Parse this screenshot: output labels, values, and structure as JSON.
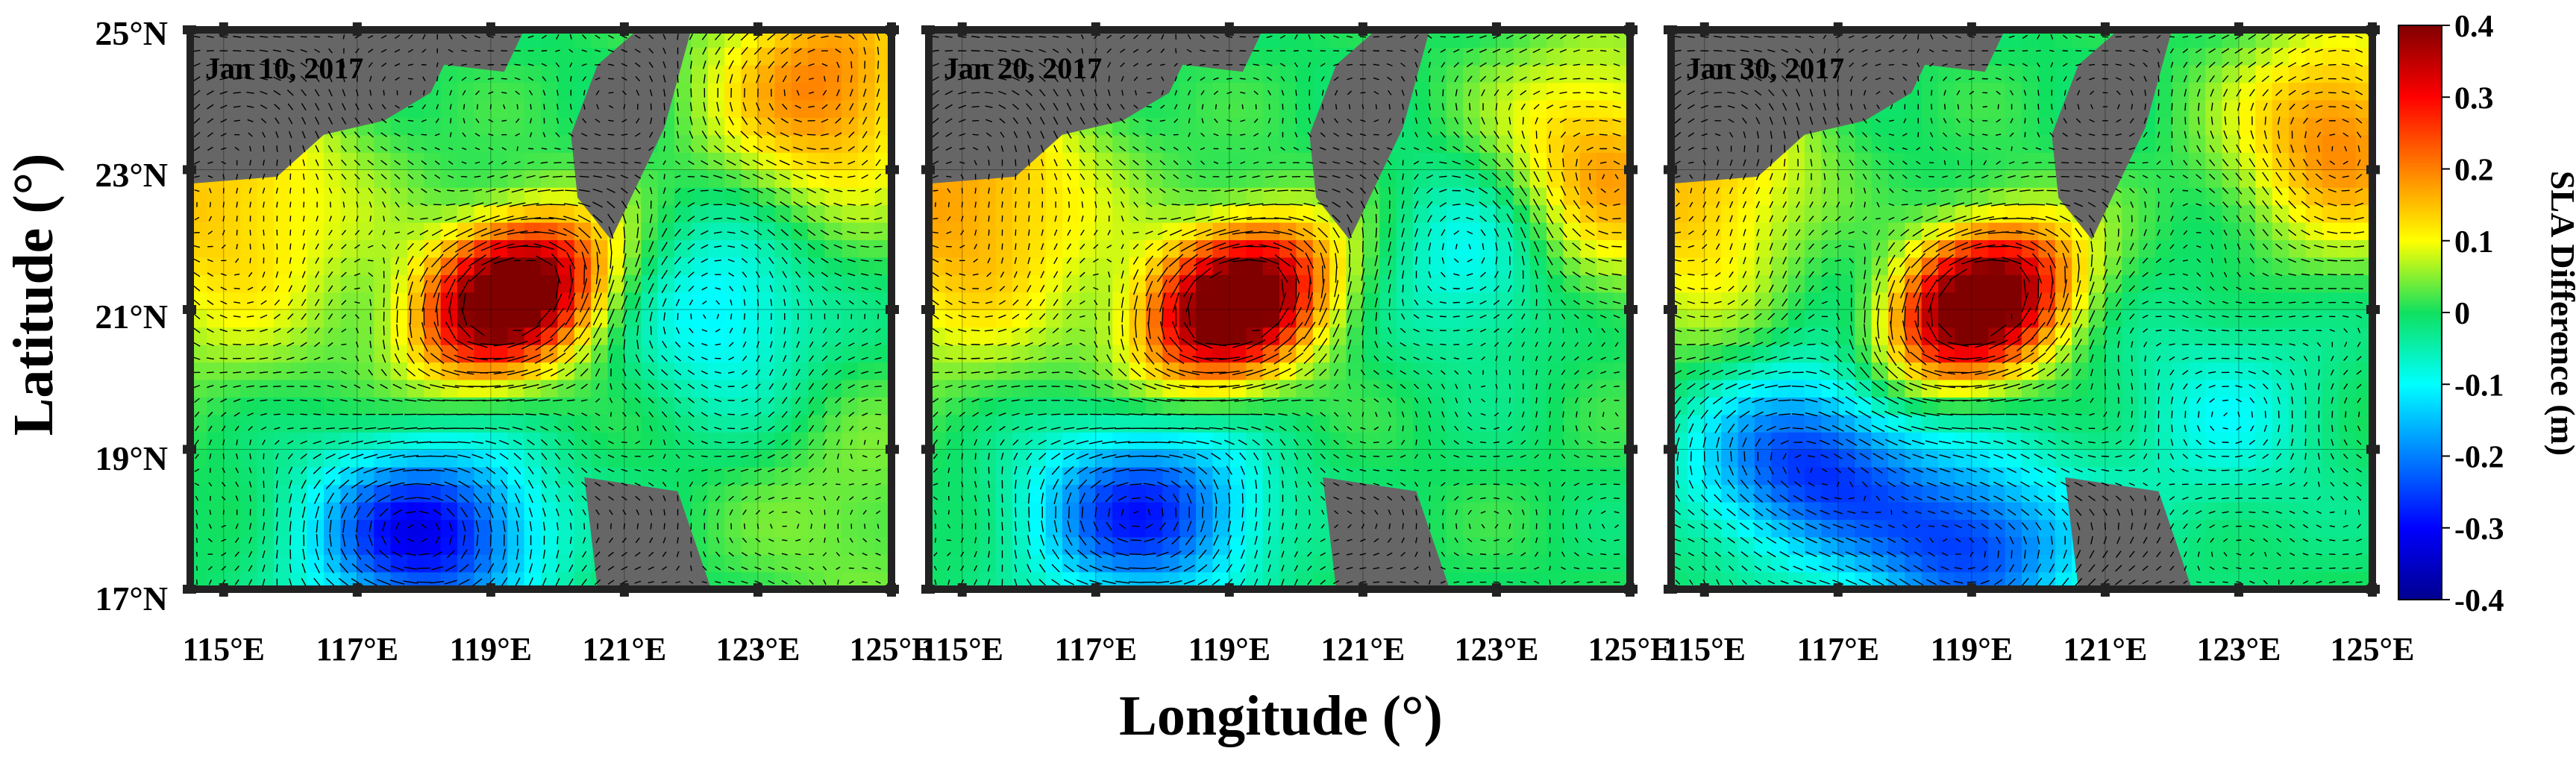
{
  "figure": {
    "ylabel": "Latitude (°)",
    "xlabel": "Longitude (°)",
    "lat_ticks": [
      "25°N",
      "23°N",
      "21°N",
      "19°N",
      "17°N"
    ],
    "lon_ticks": [
      "115°E",
      "117°E",
      "119°E",
      "121°E",
      "123°E",
      "125°E"
    ]
  },
  "panels": [
    {
      "date": "Jan  10, 2017"
    },
    {
      "date": "Jan  20, 2017"
    },
    {
      "date": "Jan  30, 2017"
    }
  ],
  "colorbar": {
    "label": "SLA Difference (m)",
    "ticks": [
      "0.4",
      "0.3",
      "0.2",
      "0.1",
      "0",
      "-0.1",
      "-0.2",
      "-0.3",
      "-0.4"
    ],
    "range": [
      -0.4,
      0.4
    ],
    "colormap": "jet"
  },
  "colors": {
    "land": "#666666",
    "frame": "#222222",
    "vector": "#000000"
  },
  "chart_data": {
    "type": "heatmap",
    "lon_range": [
      114.5,
      125
    ],
    "lat_range": [
      17,
      25
    ],
    "value_range": [
      -0.4,
      0.4
    ],
    "features": [
      {
        "panel": "Jan  10, 2017",
        "kind": "anticyclonic eddy",
        "lon": 119.3,
        "lat": 21.2,
        "peak": 0.4
      },
      {
        "panel": "Jan  10, 2017",
        "kind": "cyclonic eddy",
        "lon": 118,
        "lat": 17.8,
        "peak": -0.25
      },
      {
        "panel": "Jan  20, 2017",
        "kind": "anticyclonic eddy",
        "lon": 119.1,
        "lat": 21.1,
        "peak": 0.4
      },
      {
        "panel": "Jan  20, 2017",
        "kind": "cyclonic eddy",
        "lon": 117.7,
        "lat": 18.1,
        "peak": -0.22
      },
      {
        "panel": "Jan  30, 2017",
        "kind": "anticyclonic eddy",
        "lon": 119.1,
        "lat": 21.1,
        "peak": 0.4
      },
      {
        "panel": "Jan  30, 2017",
        "kind": "cyclonic eddy",
        "lon": 116.5,
        "lat": 18.8,
        "peak": -0.2
      },
      {
        "panel": "Jan  30, 2017",
        "kind": "cyclonic eddy",
        "lon": 119,
        "lat": 17.6,
        "peak": -0.2
      }
    ]
  }
}
